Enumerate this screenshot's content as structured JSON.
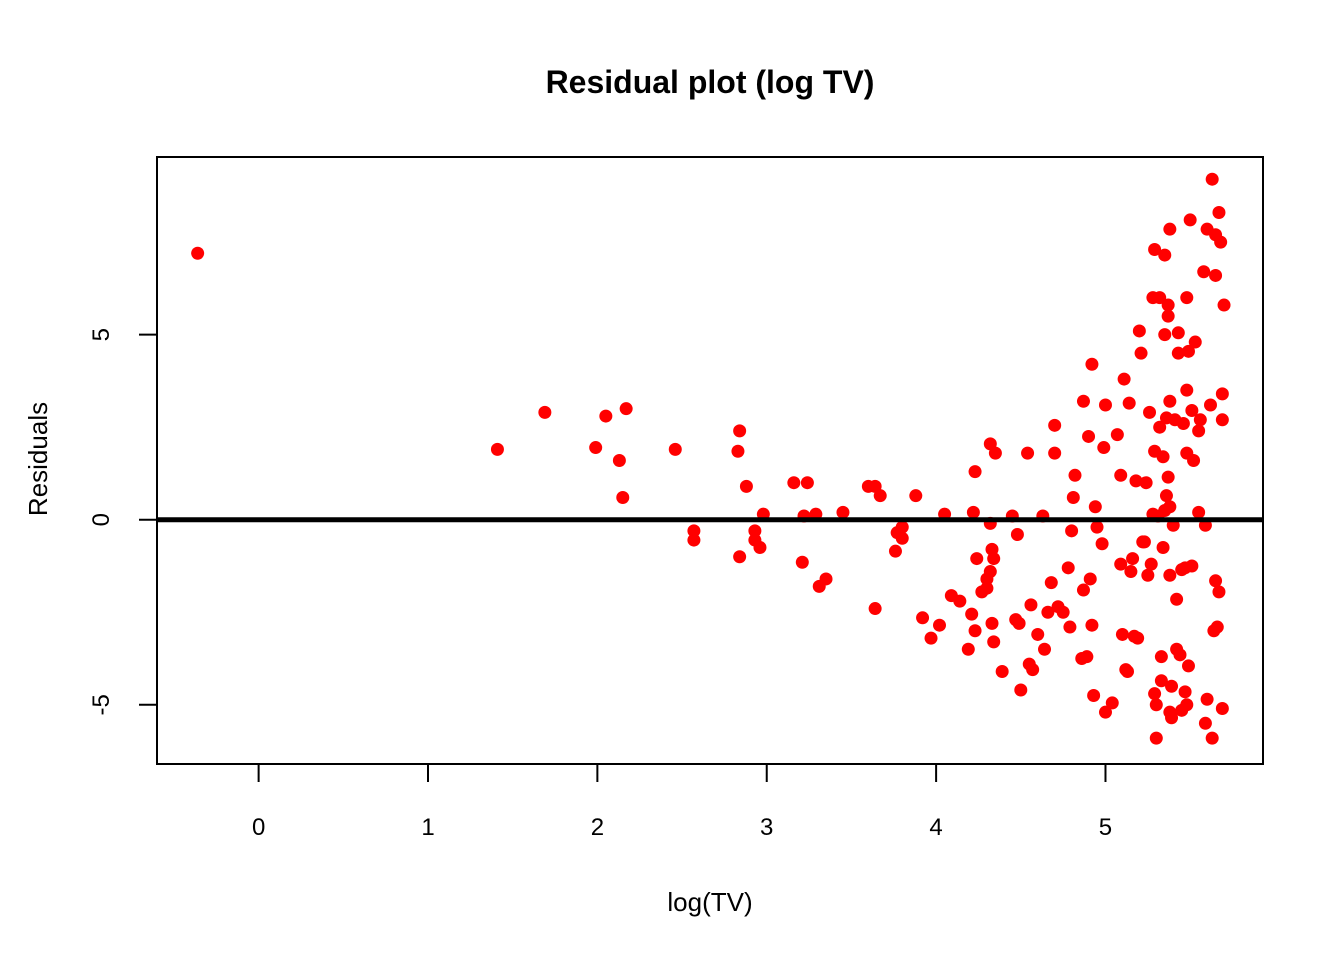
{
  "chart_data": {
    "type": "scatter",
    "title": "Residual plot (log TV)",
    "xlabel": "log(TV)",
    "ylabel": "Residuals",
    "xlim": [
      -0.6,
      5.93
    ],
    "ylim": [
      -6.6,
      9.8
    ],
    "x_ticks": [
      0,
      1,
      2,
      3,
      4,
      5
    ],
    "y_ticks": [
      -5,
      0,
      5
    ],
    "reference_line": {
      "y": 0,
      "color": "#000000"
    },
    "point_color": "#ff0000",
    "grid": false,
    "legend": "none",
    "points": [
      [
        -0.36,
        7.2
      ],
      [
        1.41,
        1.9
      ],
      [
        1.69,
        2.9
      ],
      [
        1.99,
        1.95
      ],
      [
        2.05,
        2.8
      ],
      [
        2.13,
        1.6
      ],
      [
        2.15,
        0.6
      ],
      [
        2.17,
        3.0
      ],
      [
        2.46,
        1.9
      ],
      [
        2.57,
        -0.3
      ],
      [
        2.57,
        -0.55
      ],
      [
        2.83,
        1.85
      ],
      [
        2.84,
        2.4
      ],
      [
        2.84,
        -1.0
      ],
      [
        2.88,
        0.9
      ],
      [
        2.93,
        -0.3
      ],
      [
        2.93,
        -0.55
      ],
      [
        2.96,
        -0.75
      ],
      [
        2.98,
        0.15
      ],
      [
        3.16,
        1.0
      ],
      [
        3.21,
        -1.15
      ],
      [
        3.22,
        0.1
      ],
      [
        3.24,
        1.0
      ],
      [
        3.29,
        0.15
      ],
      [
        3.31,
        -1.8
      ],
      [
        3.35,
        -1.6
      ],
      [
        3.45,
        0.2
      ],
      [
        3.6,
        0.9
      ],
      [
        3.64,
        0.9
      ],
      [
        3.64,
        -2.4
      ],
      [
        3.67,
        0.65
      ],
      [
        3.76,
        -0.85
      ],
      [
        3.77,
        -0.35
      ],
      [
        3.8,
        -0.2
      ],
      [
        3.8,
        -0.5
      ],
      [
        3.88,
        0.65
      ],
      [
        3.92,
        -2.65
      ],
      [
        3.97,
        -3.2
      ],
      [
        4.02,
        -2.85
      ],
      [
        4.05,
        0.15
      ],
      [
        4.09,
        -2.05
      ],
      [
        4.14,
        -2.2
      ],
      [
        4.19,
        -3.5
      ],
      [
        4.21,
        -2.55
      ],
      [
        4.22,
        0.2
      ],
      [
        4.23,
        1.3
      ],
      [
        4.23,
        -3.0
      ],
      [
        4.24,
        -1.05
      ],
      [
        4.27,
        -1.95
      ],
      [
        4.3,
        -1.6
      ],
      [
        4.3,
        -1.85
      ],
      [
        4.32,
        2.05
      ],
      [
        4.32,
        -0.1
      ],
      [
        4.32,
        -1.4
      ],
      [
        4.33,
        -2.8
      ],
      [
        4.33,
        -0.8
      ],
      [
        4.34,
        -1.05
      ],
      [
        4.34,
        -3.3
      ],
      [
        4.35,
        1.8
      ],
      [
        4.39,
        -4.1
      ],
      [
        4.45,
        0.1
      ],
      [
        4.47,
        -2.7
      ],
      [
        4.48,
        -0.4
      ],
      [
        4.49,
        -2.8
      ],
      [
        4.5,
        -4.6
      ],
      [
        4.54,
        1.8
      ],
      [
        4.55,
        -3.9
      ],
      [
        4.56,
        -2.3
      ],
      [
        4.57,
        -4.05
      ],
      [
        4.6,
        -3.1
      ],
      [
        4.63,
        0.1
      ],
      [
        4.64,
        -3.5
      ],
      [
        4.66,
        -2.5
      ],
      [
        4.68,
        -1.7
      ],
      [
        4.7,
        2.55
      ],
      [
        4.7,
        1.8
      ],
      [
        4.72,
        -2.35
      ],
      [
        4.75,
        -2.5
      ],
      [
        4.78,
        -1.3
      ],
      [
        4.79,
        -2.9
      ],
      [
        4.8,
        -0.3
      ],
      [
        4.81,
        0.6
      ],
      [
        4.82,
        1.2
      ],
      [
        4.86,
        -3.75
      ],
      [
        4.87,
        3.2
      ],
      [
        4.87,
        -1.9
      ],
      [
        4.89,
        -3.7
      ],
      [
        4.9,
        2.25
      ],
      [
        4.91,
        -1.6
      ],
      [
        4.92,
        4.2
      ],
      [
        4.92,
        -2.85
      ],
      [
        4.93,
        -4.75
      ],
      [
        4.94,
        0.35
      ],
      [
        4.95,
        -0.2
      ],
      [
        4.98,
        -0.65
      ],
      [
        4.99,
        1.95
      ],
      [
        5.0,
        -5.2
      ],
      [
        5.0,
        3.1
      ],
      [
        5.04,
        -4.95
      ],
      [
        5.07,
        2.3
      ],
      [
        5.09,
        -1.2
      ],
      [
        5.09,
        1.2
      ],
      [
        5.1,
        -3.1
      ],
      [
        5.11,
        3.8
      ],
      [
        5.12,
        -4.05
      ],
      [
        5.13,
        -4.1
      ],
      [
        5.14,
        3.15
      ],
      [
        5.15,
        -1.4
      ],
      [
        5.16,
        -1.05
      ],
      [
        5.17,
        -3.15
      ],
      [
        5.18,
        1.05
      ],
      [
        5.19,
        -3.2
      ],
      [
        5.2,
        5.1
      ],
      [
        5.21,
        4.5
      ],
      [
        5.22,
        -0.6
      ],
      [
        5.23,
        -0.6
      ],
      [
        5.24,
        1.0
      ],
      [
        5.25,
        -1.5
      ],
      [
        5.26,
        2.9
      ],
      [
        5.27,
        -1.2
      ],
      [
        5.28,
        6.0
      ],
      [
        5.28,
        0.15
      ],
      [
        5.29,
        7.3
      ],
      [
        5.29,
        1.85
      ],
      [
        5.29,
        -4.7
      ],
      [
        5.3,
        -5.0
      ],
      [
        5.3,
        -5.9
      ],
      [
        5.31,
        0.1
      ],
      [
        5.32,
        2.5
      ],
      [
        5.32,
        6.0
      ],
      [
        5.33,
        -3.7
      ],
      [
        5.33,
        -4.35
      ],
      [
        5.34,
        -0.75
      ],
      [
        5.34,
        1.7
      ],
      [
        5.35,
        7.15
      ],
      [
        5.35,
        5.0
      ],
      [
        5.35,
        0.25
      ],
      [
        5.36,
        0.65
      ],
      [
        5.36,
        2.75
      ],
      [
        5.37,
        5.8
      ],
      [
        5.37,
        5.5
      ],
      [
        5.37,
        1.15
      ],
      [
        5.38,
        0.35
      ],
      [
        5.38,
        7.85
      ],
      [
        5.38,
        3.2
      ],
      [
        5.38,
        -1.5
      ],
      [
        5.38,
        -5.2
      ],
      [
        5.39,
        -5.35
      ],
      [
        5.39,
        -4.5
      ],
      [
        5.4,
        -0.15
      ],
      [
        5.41,
        2.7
      ],
      [
        5.42,
        -3.5
      ],
      [
        5.42,
        -2.15
      ],
      [
        5.43,
        4.5
      ],
      [
        5.43,
        5.05
      ],
      [
        5.44,
        -3.65
      ],
      [
        5.45,
        -1.35
      ],
      [
        5.45,
        -5.15
      ],
      [
        5.46,
        2.6
      ],
      [
        5.47,
        -1.3
      ],
      [
        5.47,
        -4.65
      ],
      [
        5.48,
        1.8
      ],
      [
        5.48,
        3.5
      ],
      [
        5.48,
        6.0
      ],
      [
        5.48,
        -5.0
      ],
      [
        5.49,
        -3.95
      ],
      [
        5.49,
        4.55
      ],
      [
        5.5,
        8.1
      ],
      [
        5.51,
        -1.25
      ],
      [
        5.51,
        2.95
      ],
      [
        5.52,
        1.6
      ],
      [
        5.53,
        4.8
      ],
      [
        5.55,
        2.4
      ],
      [
        5.55,
        0.2
      ],
      [
        5.56,
        2.7
      ],
      [
        5.58,
        6.7
      ],
      [
        5.59,
        -5.5
      ],
      [
        5.59,
        -0.15
      ],
      [
        5.6,
        -4.85
      ],
      [
        5.6,
        7.85
      ],
      [
        5.62,
        3.1
      ],
      [
        5.63,
        -5.9
      ],
      [
        5.63,
        9.2
      ],
      [
        5.64,
        -3.0
      ],
      [
        5.65,
        6.6
      ],
      [
        5.65,
        7.7
      ],
      [
        5.65,
        -1.65
      ],
      [
        5.66,
        -2.9
      ],
      [
        5.67,
        8.3
      ],
      [
        5.67,
        -1.95
      ],
      [
        5.68,
        7.5
      ],
      [
        5.69,
        -5.1
      ],
      [
        5.69,
        2.7
      ],
      [
        5.69,
        3.4
      ],
      [
        5.7,
        5.8
      ]
    ]
  }
}
